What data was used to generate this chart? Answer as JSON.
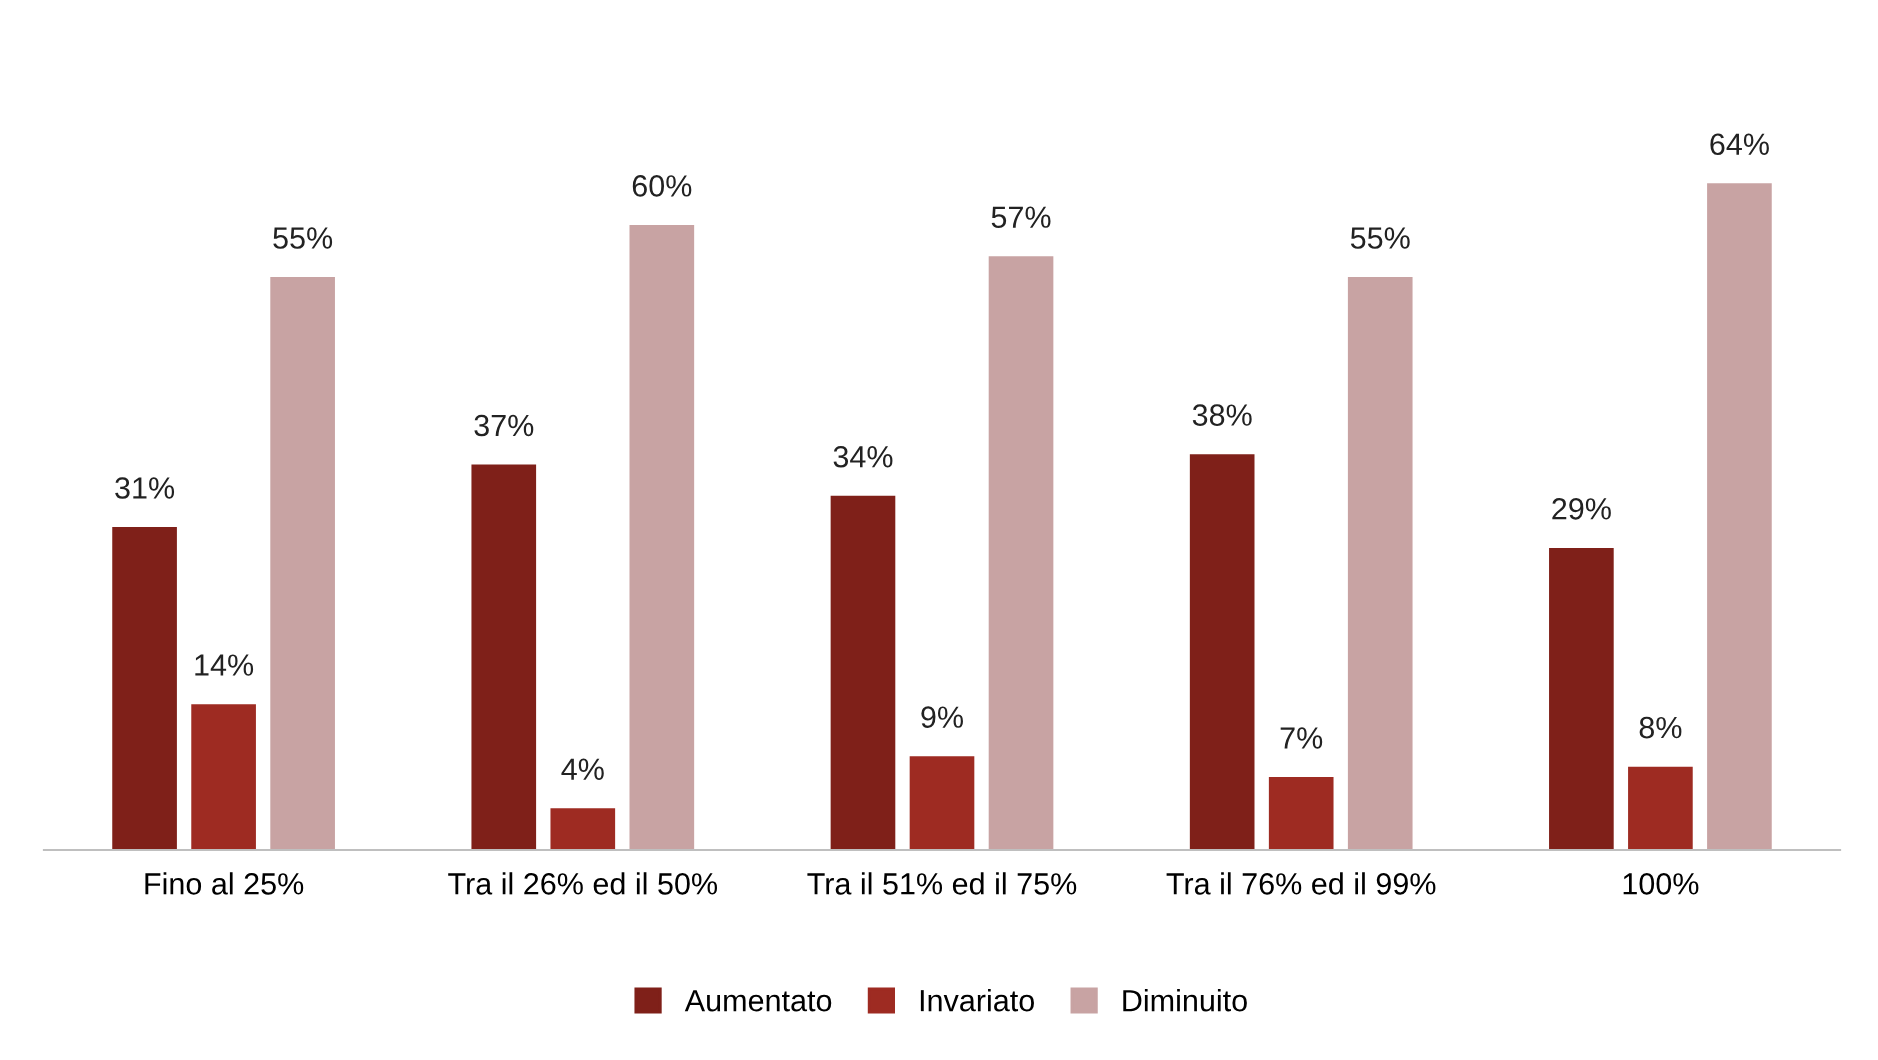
{
  "chart_data": {
    "type": "bar",
    "categories": [
      "Fino al 25%",
      "Tra il 26% ed il 50%",
      "Tra il 51% ed il 75%",
      "Tra il 76% ed il 99%",
      "100%"
    ],
    "series": [
      {
        "name": "Aumentato",
        "color": "#7f2019",
        "values": [
          31,
          37,
          34,
          38,
          29
        ],
        "value_labels": [
          "31%",
          "37%",
          "34%",
          "38%",
          "29%"
        ]
      },
      {
        "name": "Invariato",
        "color": "#9e2b22",
        "values": [
          14,
          4,
          9,
          7,
          8
        ],
        "value_labels": [
          "14%",
          "4%",
          "9%",
          "7%",
          "8%"
        ]
      },
      {
        "name": "Diminuito",
        "color": "#c8a3a3",
        "values": [
          55,
          60,
          57,
          55,
          64
        ],
        "value_labels": [
          "55%",
          "60%",
          "57%",
          "55%",
          "64%"
        ]
      }
    ],
    "legend": "bottom",
    "grid": false
  }
}
